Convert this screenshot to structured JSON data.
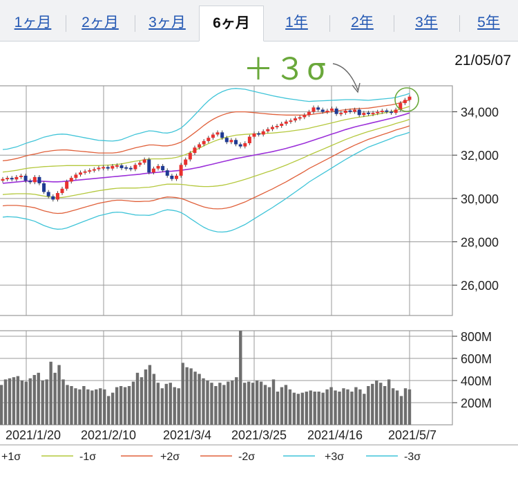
{
  "tabs": [
    {
      "label": "1ヶ月",
      "active": false
    },
    {
      "label": "2ヶ月",
      "active": false
    },
    {
      "label": "3ヶ月",
      "active": false
    },
    {
      "label": "6ヶ月",
      "active": true
    },
    {
      "label": "1年",
      "active": false
    },
    {
      "label": "2年",
      "active": false
    },
    {
      "label": "3年",
      "active": false
    },
    {
      "label": "5年",
      "active": false
    }
  ],
  "date_label": "21/05/07",
  "annotation": "＋３σ",
  "colors": {
    "ma": "#9b30d9",
    "sigma1": "#b4c83c",
    "sigma2": "#e0603a",
    "sigma3": "#3fc4d8",
    "candle_up": "#e8312f",
    "candle_down": "#1f3a93",
    "volume": "#6e6e6e",
    "annotation": "#6aa83b",
    "grid": "#9a9a9a"
  },
  "chart_data": [
    {
      "type": "candlestick",
      "title": "",
      "yticks": [
        "34,000",
        "32,000",
        "30,000",
        "28,000",
        "26,000"
      ],
      "ylim": [
        24600,
        35200
      ],
      "xlabels": [
        "2021/1/20",
        "2021/2/10",
        "2021/3/4",
        "2021/3/25",
        "2021/4/16",
        "2021/5/7"
      ],
      "grid": true,
      "close": [
        30900,
        30950,
        30880,
        30990,
        31050,
        30820,
        30750,
        30990,
        30700,
        30300,
        30100,
        29950,
        30250,
        30450,
        30780,
        30950,
        31100,
        31200,
        31250,
        31300,
        31350,
        31420,
        31450,
        31380,
        31500,
        31530,
        31400,
        31380,
        31350,
        31550,
        31650,
        31800,
        31200,
        31380,
        31500,
        31300,
        31050,
        30900,
        31050,
        31550,
        31800,
        32100,
        32350,
        32500,
        32650,
        32800,
        32950,
        33050,
        32800,
        32600,
        32700,
        32500,
        32400,
        32550,
        32850,
        33000,
        32950,
        33100,
        33200,
        33300,
        33350,
        33450,
        33550,
        33600,
        33700,
        33750,
        33850,
        34000,
        34200,
        34100,
        34000,
        34050,
        34150,
        33900,
        33950,
        34050,
        34000,
        34100,
        33850,
        33950,
        33900,
        33950,
        34000,
        34050,
        34000,
        33950,
        34100,
        34400,
        34550,
        34700
      ],
      "up": [
        true,
        true,
        false,
        true,
        true,
        false,
        false,
        true,
        false,
        false,
        false,
        false,
        true,
        true,
        true,
        true,
        true,
        true,
        true,
        true,
        true,
        true,
        true,
        false,
        true,
        true,
        false,
        false,
        false,
        true,
        true,
        true,
        false,
        true,
        true,
        false,
        false,
        false,
        true,
        true,
        true,
        true,
        true,
        true,
        true,
        true,
        true,
        true,
        false,
        false,
        true,
        false,
        false,
        true,
        true,
        true,
        false,
        true,
        true,
        true,
        true,
        true,
        true,
        true,
        true,
        true,
        true,
        true,
        true,
        false,
        false,
        true,
        true,
        false,
        true,
        true,
        false,
        true,
        false,
        true,
        false,
        true,
        true,
        true,
        false,
        false,
        true,
        true,
        true,
        true
      ],
      "ma": [
        30700,
        30720,
        30740,
        30760,
        30780,
        30800,
        30810,
        30810,
        30800,
        30790,
        30780,
        30770,
        30770,
        30780,
        30800,
        30820,
        30840,
        30860,
        30880,
        30900,
        30920,
        30940,
        30960,
        30980,
        31000,
        31020,
        31040,
        31060,
        31080,
        31100,
        31120,
        31150,
        31170,
        31190,
        31210,
        31230,
        31250,
        31260,
        31280,
        31300,
        31330,
        31360,
        31400,
        31440,
        31490,
        31540,
        31590,
        31640,
        31690,
        31740,
        31790,
        31840,
        31880,
        31920,
        31960,
        32000,
        32040,
        32080,
        32120,
        32160,
        32210,
        32260,
        32310,
        32370,
        32430,
        32490,
        32550,
        32620,
        32690,
        32760,
        32830,
        32900,
        32970,
        33040,
        33110,
        33180,
        33240,
        33300,
        33350,
        33400,
        33450,
        33500,
        33550,
        33600,
        33650,
        33700,
        33760,
        33820,
        33880,
        33950
      ],
      "spread": [
        520,
        520,
        530,
        540,
        560,
        580,
        600,
        620,
        650,
        680,
        700,
        720,
        730,
        730,
        720,
        700,
        680,
        660,
        640,
        620,
        600,
        580,
        570,
        560,
        550,
        550,
        560,
        580,
        600,
        620,
        630,
        640,
        650,
        640,
        620,
        600,
        590,
        600,
        620,
        650,
        700,
        760,
        820,
        880,
        940,
        990,
        1030,
        1060,
        1080,
        1090,
        1090,
        1080,
        1060,
        1040,
        1010,
        980,
        950,
        920,
        890,
        860,
        830,
        800,
        770,
        740,
        710,
        680,
        650,
        620,
        600,
        580,
        560,
        540,
        520,
        500,
        480,
        460,
        440,
        420,
        400,
        380,
        360,
        350,
        340,
        330,
        320,
        310,
        300,
        300,
        300,
        300
      ]
    },
    {
      "type": "bar",
      "title": "",
      "yticks": [
        "800M",
        "600M",
        "400M",
        "200M"
      ],
      "ylim": [
        0,
        850
      ],
      "values": [
        360,
        410,
        420,
        430,
        440,
        400,
        390,
        420,
        450,
        470,
        400,
        410,
        570,
        470,
        540,
        410,
        360,
        350,
        330,
        320,
        350,
        320,
        310,
        320,
        330,
        320,
        260,
        290,
        340,
        350,
        340,
        350,
        390,
        470,
        430,
        500,
        540,
        460,
        380,
        330,
        370,
        380,
        340,
        330,
        560,
        520,
        510,
        480,
        460,
        420,
        400,
        380,
        350,
        380,
        360,
        390,
        400,
        430,
        850,
        380,
        390,
        380,
        400,
        390,
        360,
        340,
        410,
        300,
        340,
        360,
        320,
        290,
        280,
        290,
        300,
        310,
        300,
        300,
        290,
        320,
        340,
        310,
        300,
        330,
        320,
        300,
        340,
        320,
        280,
        350,
        370,
        400,
        380,
        350,
        410,
        330,
        310,
        260,
        330,
        320
      ]
    }
  ],
  "legend": [
    {
      "label": "+1σ",
      "color": "#b4c83c"
    },
    {
      "label": "-1σ",
      "color": "#b4c83c"
    },
    {
      "label": "+2σ",
      "color": "#e0603a"
    },
    {
      "label": "-2σ",
      "color": "#e0603a"
    },
    {
      "label": "+3σ",
      "color": "#3fc4d8"
    },
    {
      "label": "-3σ",
      "color": "#3fc4d8"
    }
  ]
}
